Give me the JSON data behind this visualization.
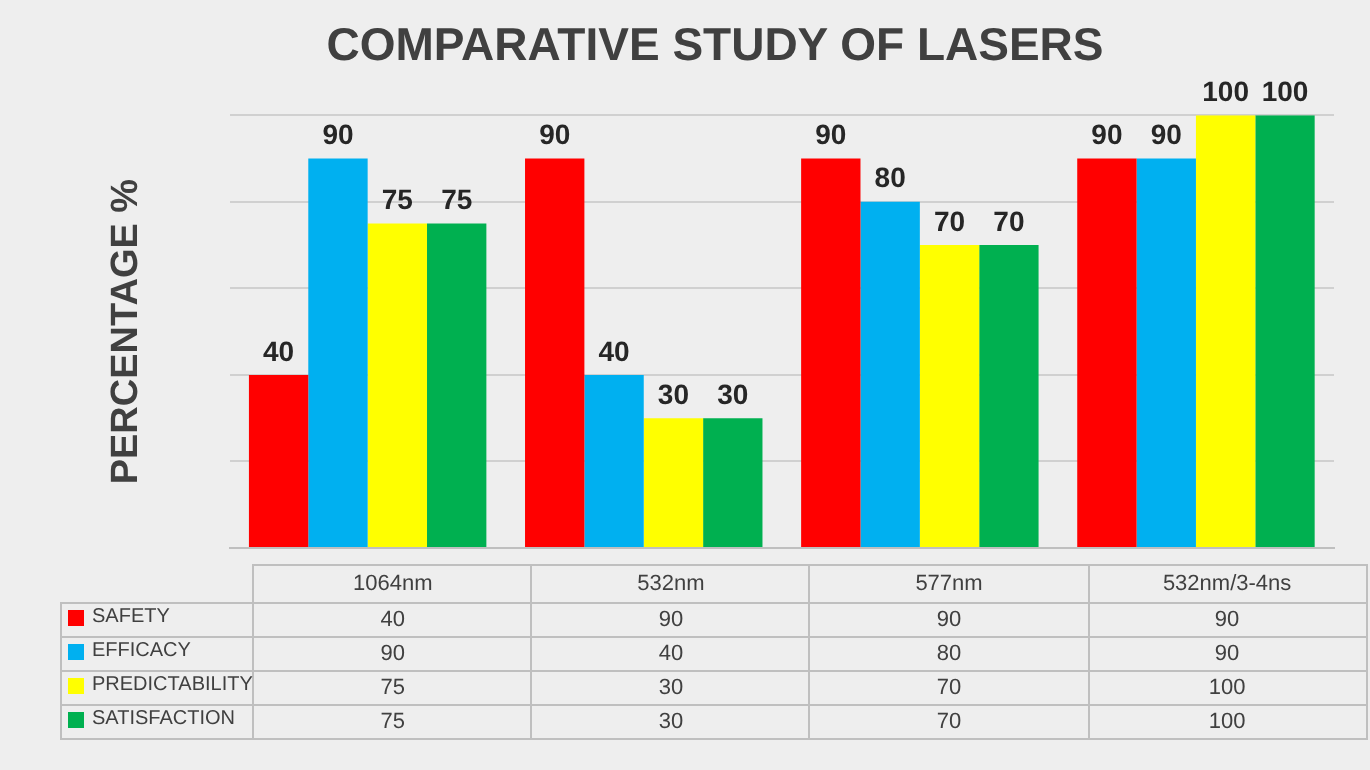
{
  "chart_data": {
    "type": "bar",
    "title": "COMPARATIVE STUDY OF LASERS",
    "ylabel": "PERCENTAGE %",
    "categories": [
      "1064nm",
      "532nm",
      "577nm",
      "532nm/3-4ns"
    ],
    "series": [
      {
        "name": "SAFETY",
        "color": "#ff0000",
        "values": [
          40,
          90,
          90,
          90
        ]
      },
      {
        "name": "EFFICACY",
        "color": "#00b0f0",
        "values": [
          90,
          40,
          80,
          90
        ]
      },
      {
        "name": "PREDICTABILITY",
        "color": "#ffff00",
        "values": [
          75,
          30,
          70,
          100
        ]
      },
      {
        "name": "SATISFACTION",
        "color": "#00b050",
        "values": [
          75,
          30,
          70,
          100
        ]
      }
    ],
    "annotations": [
      "40",
      "90",
      "75",
      "75",
      "90",
      "40",
      "30",
      "30",
      "90",
      "80",
      "70",
      "70",
      "90",
      "90",
      "100",
      "100"
    ],
    "ylim": [
      0,
      100
    ],
    "yticks": [
      {
        "value": 0,
        "label": null
      },
      {
        "value": 20,
        "label": null
      },
      {
        "value": 40,
        "label": null
      },
      {
        "value": 60,
        "label": null
      },
      {
        "value": 80,
        "label": null
      },
      {
        "value": 100,
        "label": null
      }
    ],
    "tick_labels": "x",
    "grid": "y",
    "legend": "bottom",
    "data_labels": true
  }
}
